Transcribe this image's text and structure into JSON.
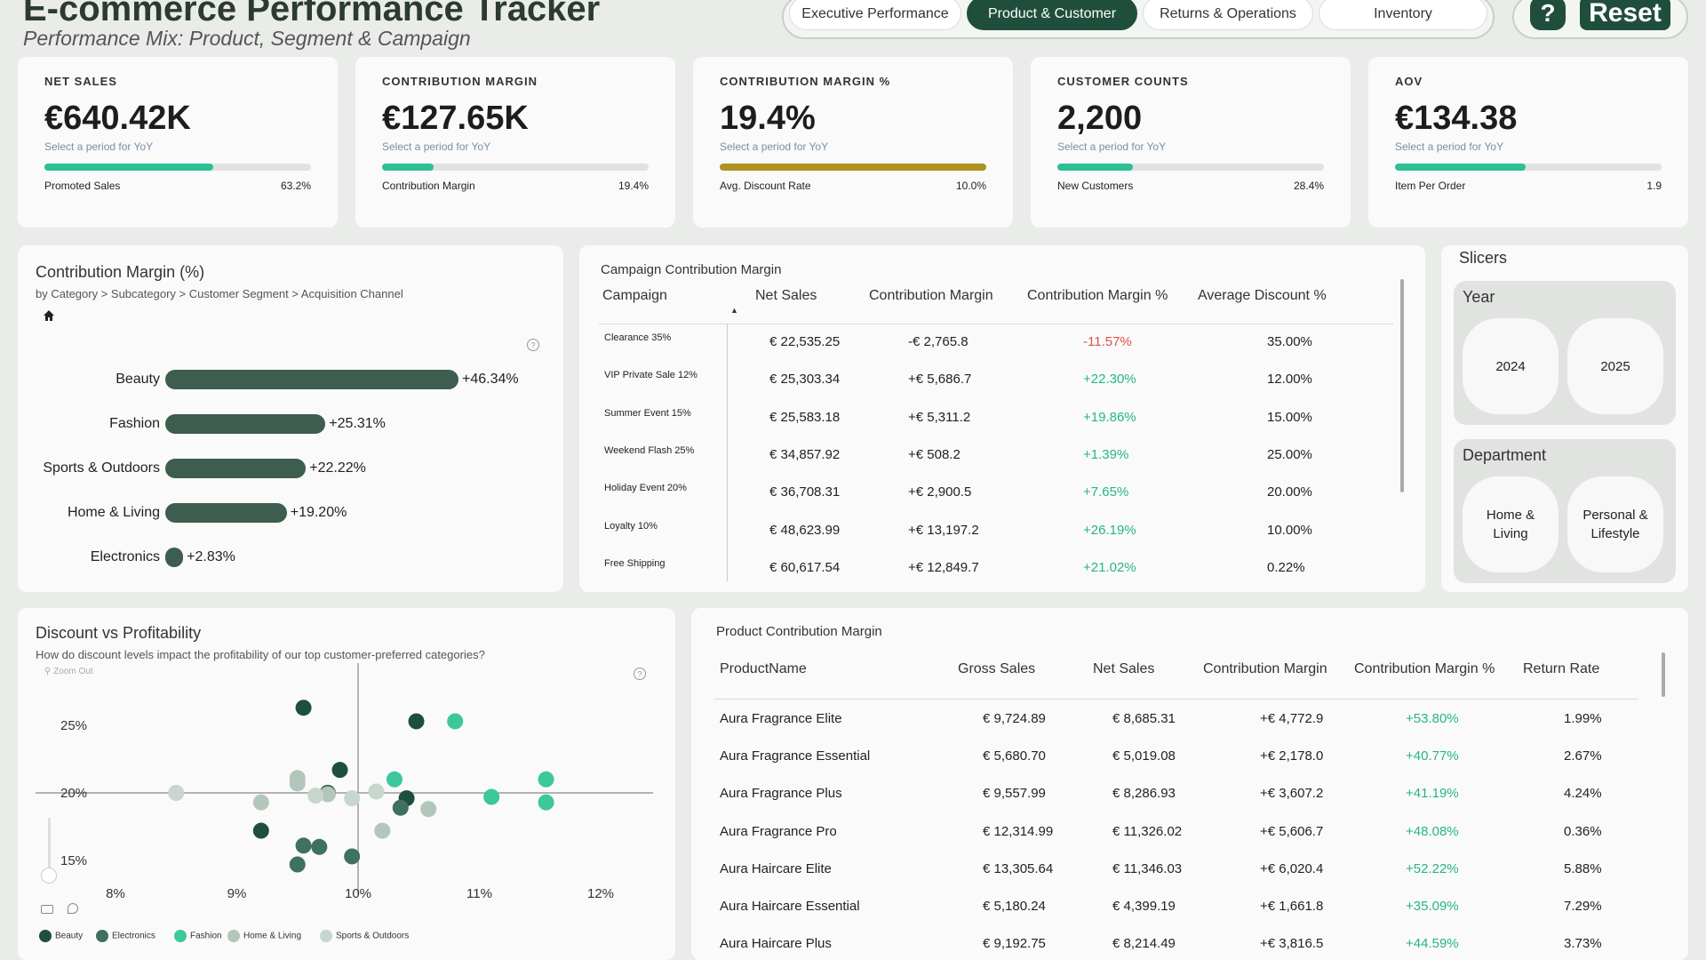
{
  "header": {
    "title": "E-commerce Performance Tracker",
    "subtitle": "Performance Mix: Product, Segment & Campaign",
    "tabs": [
      "Executive Performance",
      "Product & Customer",
      "Returns & Operations",
      "Inventory"
    ],
    "active_tab": "Product & Customer",
    "help_label": "?",
    "reset_label": "Reset"
  },
  "kpis": [
    {
      "label": "Net Sales",
      "value": "€640.42K",
      "hint": "Select a period for YoY",
      "foot": "Promoted Sales",
      "pct": "63.2%",
      "fill": 0.632,
      "color": "#2fbf95"
    },
    {
      "label": "Contribution Margin",
      "value": "€127.65K",
      "hint": "Select a period for YoY",
      "foot": "Contribution Margin",
      "pct": "19.4%",
      "fill": 0.194,
      "color": "#2fbf95"
    },
    {
      "label": "Contribution Margin %",
      "value": "19.4%",
      "hint": "Select a period for YoY",
      "foot": "Avg. Discount Rate",
      "pct": "10.0%",
      "fill": 1.0,
      "color": "#b09222"
    },
    {
      "label": "Customer Counts",
      "value": "2,200",
      "hint": "Select a period for YoY",
      "foot": "New Customers",
      "pct": "28.4%",
      "fill": 0.284,
      "color": "#2fbf95"
    },
    {
      "label": "AOV",
      "value": "€134.38",
      "hint": "Select a period for YoY",
      "foot": "Item Per Order",
      "pct": "1.9",
      "fill": 0.49,
      "color": "#2fbf95"
    }
  ],
  "cm_panel": {
    "title": "Contribution Margin (%)",
    "subtitle": "by Category > Subcategory > Customer Segment > Acquisition Channel",
    "home_icon": "home-icon"
  },
  "chart_data": {
    "type": "bar",
    "orientation": "horizontal",
    "categories": [
      "Beauty",
      "Fashion",
      "Sports & Outdoors",
      "Home & Living",
      "Electronics"
    ],
    "values": [
      46.34,
      25.31,
      22.22,
      19.2,
      2.83
    ],
    "value_labels": [
      "+46.34%",
      "+25.31%",
      "+22.22%",
      "+19.20%",
      "+2.83%"
    ],
    "title": "Contribution Margin (%)",
    "color": "#3d5d4f"
  },
  "campaign": {
    "title": "Campaign Contribution Margin",
    "headers": [
      "Campaign",
      "Net Sales",
      "Contribution Margin",
      "Contribution Margin %",
      "Average Discount %"
    ],
    "rows": [
      {
        "campaign": "Clearance 35%",
        "net": "€ 22,535.25",
        "cm": "-€ 2,765.8",
        "cmp": "-11.57%",
        "neg": true,
        "disc": "35.00%"
      },
      {
        "campaign": "VIP Private Sale 12%",
        "net": "€ 25,303.34",
        "cm": "+€ 5,686.7",
        "cmp": "+22.30%",
        "neg": false,
        "disc": "12.00%"
      },
      {
        "campaign": "Summer Event 15%",
        "net": "€ 25,583.18",
        "cm": "+€ 5,311.2",
        "cmp": "+19.86%",
        "neg": false,
        "disc": "15.00%"
      },
      {
        "campaign": "Weekend Flash 25%",
        "net": "€ 34,857.92",
        "cm": "+€ 508.2",
        "cmp": "+1.39%",
        "neg": false,
        "disc": "25.00%"
      },
      {
        "campaign": "Holiday Event 20%",
        "net": "€ 36,708.31",
        "cm": "+€ 2,900.5",
        "cmp": "+7.65%",
        "neg": false,
        "disc": "20.00%"
      },
      {
        "campaign": "Loyalty 10%",
        "net": "€ 48,623.99",
        "cm": "+€ 13,197.2",
        "cmp": "+26.19%",
        "neg": false,
        "disc": "10.00%"
      },
      {
        "campaign": "Free Shipping",
        "net": "€ 60,617.54",
        "cm": "+€ 12,849.7",
        "cmp": "+21.02%",
        "neg": false,
        "disc": "0.22%"
      }
    ]
  },
  "slicers": {
    "title": "Slicers",
    "year": {
      "title": "Year",
      "options": [
        "2024",
        "2025"
      ]
    },
    "department": {
      "title": "Department",
      "options": [
        "Home & Living",
        "Personal & Lifestyle"
      ]
    }
  },
  "scatter": {
    "title": "Discount vs Profitability",
    "subtitle": "How do discount levels impact the profitability of our top customer-preferred categories?",
    "zoom_label": "Zoom Out",
    "x_ticks": [
      "8%",
      "9%",
      "10%",
      "11%",
      "12%"
    ],
    "y_ticks": [
      "25%",
      "20%",
      "15%"
    ],
    "legend": [
      {
        "name": "Beauty",
        "color": "#1e4f3d"
      },
      {
        "name": "Electronics",
        "color": "#3f7060"
      },
      {
        "name": "Fashion",
        "color": "#3cc79c"
      },
      {
        "name": "Home & Living",
        "color": "#b3c6bb"
      },
      {
        "name": "Sports & Outdoors",
        "color": "#c8d6ce"
      }
    ],
    "points": [
      {
        "s": 0,
        "x": 9.55,
        "y": 26.3
      },
      {
        "s": 0,
        "x": 10.48,
        "y": 25.3
      },
      {
        "s": 0,
        "x": 9.85,
        "y": 21.7
      },
      {
        "s": 0,
        "x": 9.75,
        "y": 20.0
      },
      {
        "s": 0,
        "x": 10.4,
        "y": 19.6
      },
      {
        "s": 0,
        "x": 9.2,
        "y": 17.2
      },
      {
        "s": 1,
        "x": 9.55,
        "y": 16.1
      },
      {
        "s": 1,
        "x": 9.68,
        "y": 16.0
      },
      {
        "s": 1,
        "x": 9.5,
        "y": 14.7
      },
      {
        "s": 1,
        "x": 9.95,
        "y": 15.3
      },
      {
        "s": 1,
        "x": 10.35,
        "y": 18.9
      },
      {
        "s": 2,
        "x": 10.8,
        "y": 25.3
      },
      {
        "s": 2,
        "x": 10.3,
        "y": 21.0
      },
      {
        "s": 2,
        "x": 11.55,
        "y": 21.0
      },
      {
        "s": 2,
        "x": 11.1,
        "y": 19.7
      },
      {
        "s": 2,
        "x": 11.55,
        "y": 19.3
      },
      {
        "s": 3,
        "x": 9.5,
        "y": 21.1
      },
      {
        "s": 3,
        "x": 9.5,
        "y": 20.7
      },
      {
        "s": 3,
        "x": 9.2,
        "y": 19.3
      },
      {
        "s": 3,
        "x": 9.75,
        "y": 19.9
      },
      {
        "s": 3,
        "x": 10.58,
        "y": 18.8
      },
      {
        "s": 3,
        "x": 10.2,
        "y": 17.2
      },
      {
        "s": 4,
        "x": 8.5,
        "y": 20.0
      },
      {
        "s": 4,
        "x": 9.65,
        "y": 19.8
      },
      {
        "s": 4,
        "x": 9.95,
        "y": 19.6
      },
      {
        "s": 4,
        "x": 10.15,
        "y": 20.1
      }
    ]
  },
  "products": {
    "title": "Product Contribution Margin",
    "headers": [
      "ProductName",
      "Gross Sales",
      "Net Sales",
      "Contribution Margin",
      "Contribution Margin %",
      "Return Rate"
    ],
    "rows": [
      {
        "name": "Aura Fragrance Elite",
        "gross": "€ 9,724.89",
        "net": "€ 8,685.31",
        "cm": "+€ 4,772.9",
        "cmp": "+53.80%",
        "rr": "1.99%"
      },
      {
        "name": "Aura Fragrance Essential",
        "gross": "€ 5,680.70",
        "net": "€ 5,019.08",
        "cm": "+€ 2,178.0",
        "cmp": "+40.77%",
        "rr": "2.67%"
      },
      {
        "name": "Aura Fragrance Plus",
        "gross": "€ 9,557.99",
        "net": "€ 8,286.93",
        "cm": "+€ 3,607.2",
        "cmp": "+41.19%",
        "rr": "4.24%"
      },
      {
        "name": "Aura Fragrance Pro",
        "gross": "€ 12,314.99",
        "net": "€ 11,326.02",
        "cm": "+€ 5,606.7",
        "cmp": "+48.08%",
        "rr": "0.36%"
      },
      {
        "name": "Aura Haircare Elite",
        "gross": "€ 13,305.64",
        "net": "€ 11,346.03",
        "cm": "+€ 6,020.4",
        "cmp": "+52.22%",
        "rr": "5.88%"
      },
      {
        "name": "Aura Haircare Essential",
        "gross": "€ 5,180.24",
        "net": "€ 4,399.19",
        "cm": "+€ 1,661.8",
        "cmp": "+35.09%",
        "rr": "7.29%"
      },
      {
        "name": "Aura Haircare Plus",
        "gross": "€ 9,192.75",
        "net": "€ 8,214.49",
        "cm": "+€ 3,816.5",
        "cmp": "+44.59%",
        "rr": "3.73%"
      }
    ]
  }
}
